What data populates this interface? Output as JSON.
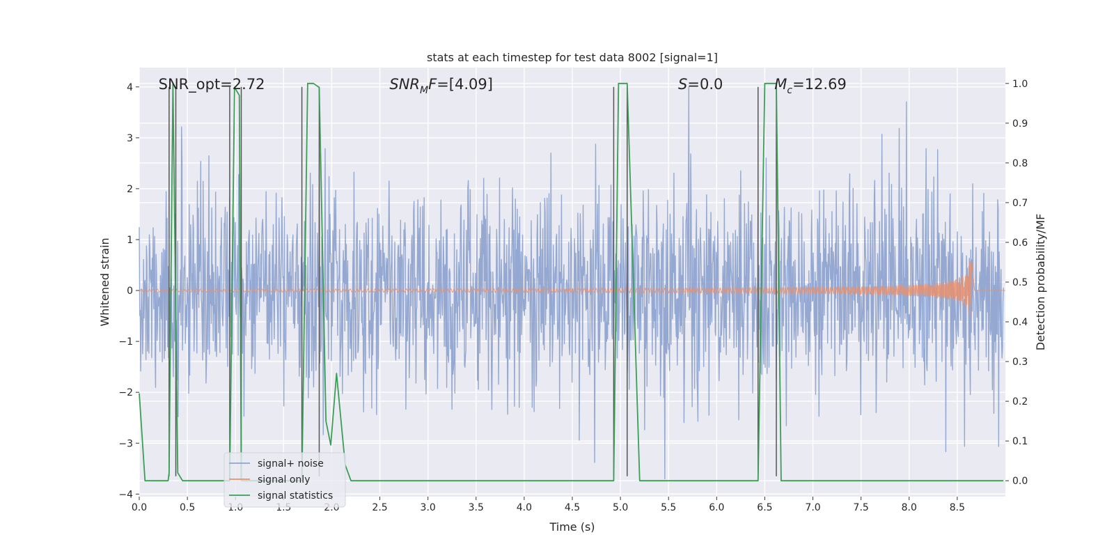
{
  "chart_data": {
    "type": "line",
    "title": "stats at each timestep for test data 8002 [signal=1]",
    "xlabel": "Time (s)",
    "ylabel_left": "Whitened strain",
    "ylabel_right": "Detection probability/MF",
    "xlim": [
      0.0,
      9.0
    ],
    "ylim_left": [
      -4.05,
      4.38
    ],
    "ylim_right": [
      -0.04,
      1.04
    ],
    "xticks": [
      0.0,
      0.5,
      1.0,
      1.5,
      2.0,
      2.5,
      3.0,
      3.5,
      4.0,
      4.5,
      5.0,
      5.5,
      6.0,
      6.5,
      7.0,
      7.5,
      8.0,
      8.5
    ],
    "xtick_labels": [
      "0.0",
      "0.5",
      "1.0",
      "1.5",
      "2.0",
      "2.5",
      "3.0",
      "3.5",
      "4.0",
      "4.5",
      "5.0",
      "5.5",
      "6.0",
      "6.5",
      "7.0",
      "7.5",
      "8.0",
      "8.5"
    ],
    "yticks_left": [
      -4,
      -3,
      -2,
      -1,
      0,
      1,
      2,
      3,
      4
    ],
    "ytick_labels_left": [
      "−4",
      "−3",
      "−2",
      "−1",
      "0",
      "1",
      "2",
      "3",
      "4"
    ],
    "yticks_right": [
      0.0,
      0.1,
      0.2,
      0.3,
      0.4,
      0.5,
      0.6,
      0.7,
      0.8,
      0.9,
      1.0
    ],
    "ytick_labels_right": [
      "0.0",
      "0.1",
      "0.2",
      "0.3",
      "0.4",
      "0.5",
      "0.6",
      "0.7",
      "0.8",
      "0.9",
      "1.0"
    ],
    "annotations": [
      {
        "id": "snr-opt",
        "text": "SNR_opt=2.72",
        "x": 0.2,
        "y": 4.05
      },
      {
        "id": "snr-mf",
        "text": "SNR_MF=[4.09]",
        "x": 2.6,
        "y": 4.05
      },
      {
        "id": "s-stat",
        "text": "S=0.0",
        "x": 5.6,
        "y": 4.05
      },
      {
        "id": "chirp-mass",
        "text": "M_c=12.69",
        "x": 6.6,
        "y": 4.05
      }
    ],
    "vertical_lines": [
      0.31,
      0.38,
      0.94,
      1.06,
      1.69,
      1.87,
      4.93,
      5.07,
      6.43,
      6.62
    ],
    "vline_range_left": [
      -3.65,
      4.0
    ],
    "legend": {
      "position": "lower-left",
      "entries": [
        {
          "label": "signal+ noise",
          "color": "#8fa4cf"
        },
        {
          "label": "signal only",
          "color": "#e8906e"
        },
        {
          "label": "signal statistics",
          "color": "#3a9e55"
        }
      ]
    },
    "series": [
      {
        "name": "signal+ noise",
        "axis": "left",
        "color": "#8fa4cf",
        "description": "whitened strain noise trace, approx. between -2.3 and 2.2 with spikes to ±3.6",
        "t_range": [
          0.0,
          8.98
        ],
        "typical_range": [
          -2.3,
          2.2
        ],
        "extreme_range": [
          -3.7,
          4.0
        ],
        "samples": 1800,
        "seed": 8002
      },
      {
        "name": "signal only",
        "axis": "left",
        "color": "#e8906e",
        "description": "chirp waveform growing until merger at ~8.66 s",
        "t_start": 0.0,
        "t_merger": 8.66,
        "peak_amplitude": 0.58,
        "base_amplitude": 0.02
      },
      {
        "name": "signal statistics",
        "axis": "right",
        "color": "#3a9e55",
        "x": [
          0.0,
          0.06,
          0.2,
          0.3,
          0.31,
          0.35,
          0.4,
          0.45,
          0.5,
          0.94,
          0.99,
          1.04,
          1.06,
          1.1,
          1.2,
          1.69,
          1.75,
          1.81,
          1.87,
          1.94,
          1.99,
          2.05,
          2.14,
          2.2,
          2.7,
          2.76,
          2.86,
          4.93,
          4.98,
          5.07,
          5.2,
          5.3,
          6.43,
          6.5,
          6.62,
          6.67,
          6.75,
          8.98
        ],
        "y": [
          0.22,
          0.0,
          0.0,
          0.0,
          0.02,
          1.0,
          0.02,
          0.0,
          0.0,
          0.0,
          0.99,
          0.97,
          0.0,
          0.0,
          0.0,
          0.0,
          1.0,
          1.0,
          0.99,
          0.15,
          0.09,
          0.27,
          0.04,
          0.0,
          0.0,
          0.0,
          0.0,
          0.0,
          1.0,
          1.0,
          0.0,
          0.0,
          0.0,
          1.0,
          1.0,
          0.0,
          0.0,
          0.0
        ]
      }
    ]
  }
}
